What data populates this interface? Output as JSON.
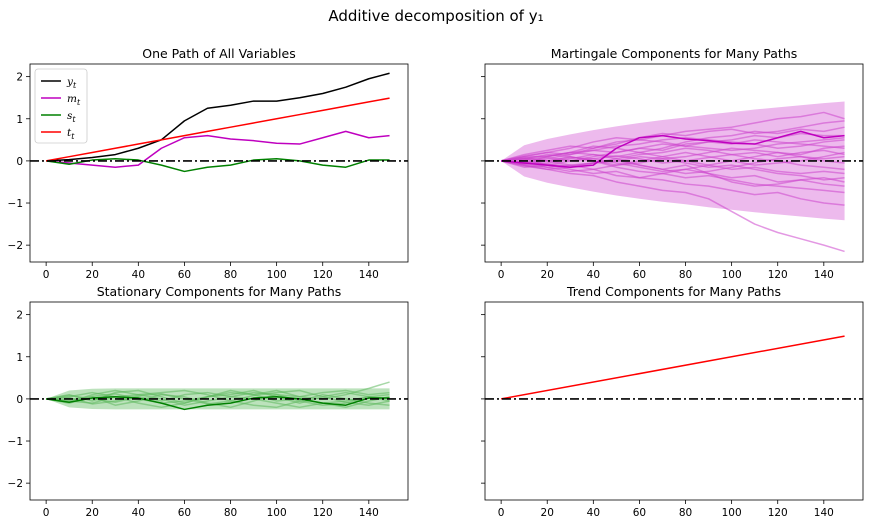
{
  "figure": {
    "title": "Additive decomposition of y₁"
  },
  "chart_data": [
    {
      "type": "line",
      "title": "One Path of All Variables",
      "xlabel": "",
      "ylabel": "",
      "xlim": [
        -7,
        157
      ],
      "ylim": [
        -2.4,
        2.3
      ],
      "xticks": [
        "0",
        "20",
        "40",
        "60",
        "80",
        "100",
        "120",
        "140"
      ],
      "yticks": [
        "−2",
        "−1",
        "0",
        "1",
        "2"
      ],
      "legend": {
        "position": "top-left",
        "entries": [
          "y_t",
          "m_t",
          "s_t",
          "t_t"
        ]
      },
      "x": [
        0,
        10,
        20,
        30,
        40,
        50,
        60,
        70,
        80,
        90,
        100,
        110,
        120,
        130,
        140,
        149
      ],
      "series": [
        {
          "name": "y_t",
          "color": "#000000",
          "values": [
            0,
            0.03,
            0.08,
            0.15,
            0.3,
            0.5,
            0.95,
            1.25,
            1.32,
            1.42,
            1.42,
            1.5,
            1.6,
            1.75,
            1.95,
            2.08
          ]
        },
        {
          "name": "m_t",
          "color": "#bf00bf",
          "values": [
            0,
            -0.05,
            -0.1,
            -0.15,
            -0.1,
            0.3,
            0.55,
            0.6,
            0.52,
            0.48,
            0.42,
            0.4,
            0.55,
            0.7,
            0.55,
            0.6
          ]
        },
        {
          "name": "s_t",
          "color": "#008000",
          "values": [
            0,
            -0.08,
            0.02,
            0.05,
            0.02,
            -0.1,
            -0.25,
            -0.15,
            -0.1,
            0.02,
            0.05,
            0,
            -0.1,
            -0.15,
            0.02,
            0.02
          ]
        },
        {
          "name": "t_t",
          "color": "#ff0000",
          "values": [
            0,
            0.1,
            0.2,
            0.3,
            0.4,
            0.5,
            0.6,
            0.7,
            0.8,
            0.9,
            1.0,
            1.1,
            1.2,
            1.3,
            1.4,
            1.49
          ]
        }
      ],
      "hline": {
        "y": 0,
        "style": "dashdot",
        "color": "#000000"
      }
    },
    {
      "type": "line",
      "title": "Martingale Components for Many Paths",
      "xlabel": "",
      "ylabel": "",
      "xlim": [
        -7,
        157
      ],
      "ylim": [
        -2.4,
        2.3
      ],
      "xticks": [
        "0",
        "20",
        "40",
        "60",
        "80",
        "100",
        "120",
        "140"
      ],
      "yticks": [],
      "band": {
        "color": "#e9a9e9",
        "upper": [
          0,
          0.37,
          0.52,
          0.63,
          0.73,
          0.82,
          0.9,
          0.97,
          1.03,
          1.1,
          1.16,
          1.22,
          1.27,
          1.32,
          1.37,
          1.41
        ],
        "lower": [
          0,
          -0.37,
          -0.52,
          -0.63,
          -0.73,
          -0.82,
          -0.9,
          -0.97,
          -1.03,
          -1.1,
          -1.16,
          -1.22,
          -1.27,
          -1.32,
          -1.37,
          -1.41
        ]
      },
      "x": [
        0,
        10,
        20,
        30,
        40,
        50,
        60,
        70,
        80,
        90,
        100,
        110,
        120,
        130,
        140,
        149
      ],
      "series": [
        {
          "values": [
            0,
            0.1,
            0.2,
            0.15,
            0.3,
            0.45,
            0.5,
            0.6,
            0.7,
            0.75,
            0.8,
            0.9,
            1.0,
            1.05,
            1.15,
            1.0
          ]
        },
        {
          "values": [
            0,
            -0.1,
            -0.2,
            -0.3,
            -0.35,
            -0.5,
            -0.6,
            -0.7,
            -0.75,
            -0.9,
            -1.2,
            -1.5,
            -1.7,
            -1.85,
            -2.0,
            -2.15
          ]
        },
        {
          "values": [
            0,
            0.05,
            -0.1,
            0.0,
            0.1,
            0.2,
            0.3,
            0.25,
            0.4,
            0.45,
            0.5,
            0.6,
            0.55,
            0.65,
            0.6,
            0.6
          ]
        },
        {
          "values": [
            0,
            -0.05,
            0.1,
            0.2,
            0.15,
            0.05,
            -0.1,
            -0.2,
            -0.1,
            -0.3,
            -0.4,
            -0.35,
            -0.5,
            -0.45,
            -0.55,
            -0.6
          ]
        },
        {
          "values": [
            0,
            0.15,
            0.25,
            0.35,
            0.3,
            0.4,
            0.55,
            0.65,
            0.6,
            0.7,
            0.75,
            0.65,
            0.7,
            0.8,
            0.9,
            0.95
          ]
        },
        {
          "values": [
            0,
            -0.15,
            -0.1,
            -0.2,
            -0.3,
            -0.25,
            -0.4,
            -0.45,
            -0.55,
            -0.6,
            -0.7,
            -0.8,
            -0.75,
            -0.9,
            -1.0,
            -1.05
          ]
        },
        {
          "values": [
            0,
            0.05,
            0.0,
            0.1,
            0.0,
            -0.1,
            0.0,
            0.1,
            0.2,
            0.1,
            0.0,
            0.1,
            0.2,
            0.15,
            0.3,
            0.35
          ]
        },
        {
          "values": [
            0,
            -0.08,
            -0.05,
            0.05,
            0.15,
            0.1,
            0.2,
            0.1,
            0.0,
            -0.1,
            -0.2,
            -0.15,
            -0.25,
            -0.3,
            -0.25,
            -0.3
          ]
        },
        {
          "values": [
            0,
            0.12,
            0.2,
            0.3,
            0.45,
            0.55,
            0.5,
            0.45,
            0.35,
            0.3,
            0.25,
            0.3,
            0.4,
            0.45,
            0.5,
            0.55
          ]
        },
        {
          "values": [
            0,
            -0.1,
            -0.15,
            -0.25,
            -0.2,
            -0.1,
            -0.05,
            0.05,
            0.1,
            0.2,
            0.3,
            0.25,
            0.2,
            0.1,
            0.05,
            0.1
          ]
        },
        {
          "values": [
            0,
            0.05,
            0.15,
            0.1,
            0.0,
            -0.15,
            -0.25,
            -0.3,
            -0.4,
            -0.35,
            -0.45,
            -0.55,
            -0.6,
            -0.65,
            -0.7,
            -0.75
          ]
        },
        {
          "values": [
            0,
            -0.05,
            0.05,
            0.15,
            0.25,
            0.2,
            0.3,
            0.4,
            0.35,
            0.45,
            0.4,
            0.5,
            0.45,
            0.4,
            0.35,
            0.3
          ]
        },
        {
          "values": [
            0,
            0.08,
            0.0,
            -0.1,
            -0.05,
            0.05,
            0.15,
            0.2,
            0.3,
            0.25,
            0.15,
            0.05,
            0.0,
            -0.1,
            -0.15,
            -0.2
          ]
        },
        {
          "values": [
            0,
            -0.12,
            -0.2,
            -0.15,
            -0.05,
            0.0,
            -0.1,
            -0.2,
            -0.3,
            -0.25,
            -0.15,
            -0.05,
            0.05,
            0.1,
            0.0,
            -0.05
          ]
        },
        {
          "values": [
            0,
            0.1,
            0.1,
            0.2,
            0.35,
            0.3,
            0.2,
            0.3,
            0.45,
            0.55,
            0.6,
            0.7,
            0.65,
            0.75,
            0.7,
            0.8
          ]
        },
        {
          "values": [
            0,
            -0.05,
            -0.15,
            -0.1,
            -0.2,
            -0.35,
            -0.4,
            -0.3,
            -0.2,
            -0.3,
            -0.5,
            -0.6,
            -0.55,
            -0.45,
            -0.4,
            -0.5
          ]
        },
        {
          "values": [
            0,
            0.03,
            0.08,
            0.0,
            0.05,
            0.12,
            0.05,
            -0.05,
            0.0,
            0.08,
            0.15,
            0.2,
            0.1,
            0.2,
            0.25,
            0.15
          ]
        },
        {
          "values": [
            0,
            -0.03,
            -0.08,
            -0.12,
            -0.05,
            0.0,
            0.1,
            0.05,
            -0.05,
            -0.15,
            -0.1,
            -0.2,
            -0.3,
            -0.35,
            -0.45,
            -0.4
          ]
        },
        {
          "values": [
            0,
            0.06,
            0.12,
            0.2,
            0.25,
            0.35,
            0.4,
            0.5,
            0.55,
            0.5,
            0.45,
            0.4,
            0.3,
            0.35,
            0.45,
            0.5
          ]
        },
        {
          "values": [
            0,
            -0.07,
            0.0,
            0.08,
            0.05,
            -0.05,
            -0.15,
            -0.25,
            -0.2,
            -0.1,
            0.0,
            -0.1,
            -0.05,
            0.0,
            0.1,
            0.2
          ]
        }
      ],
      "highlight_series": {
        "color": "#bf00bf",
        "values": [
          0,
          -0.05,
          -0.1,
          -0.15,
          -0.1,
          0.3,
          0.55,
          0.6,
          0.52,
          0.48,
          0.42,
          0.4,
          0.55,
          0.7,
          0.55,
          0.6
        ]
      },
      "series_color": "#cc44cc",
      "hline": {
        "y": 0,
        "style": "dashdot",
        "color": "#000000"
      }
    },
    {
      "type": "line",
      "title": "Stationary Components for Many Paths",
      "xlabel": "",
      "ylabel": "",
      "xlim": [
        -7,
        157
      ],
      "ylim": [
        -2.4,
        2.3
      ],
      "xticks": [
        "0",
        "20",
        "40",
        "60",
        "80",
        "100",
        "120",
        "140"
      ],
      "yticks": [
        "−2",
        "−1",
        "0",
        "1",
        "2"
      ],
      "band": {
        "color": "#8fce8f",
        "upper": [
          0,
          0.2,
          0.24,
          0.25,
          0.25,
          0.25,
          0.25,
          0.25,
          0.25,
          0.25,
          0.25,
          0.25,
          0.25,
          0.25,
          0.25,
          0.25
        ],
        "lower": [
          0,
          -0.2,
          -0.24,
          -0.25,
          -0.25,
          -0.25,
          -0.25,
          -0.25,
          -0.25,
          -0.25,
          -0.25,
          -0.25,
          -0.25,
          -0.25,
          -0.25,
          -0.25
        ]
      },
      "x": [
        0,
        10,
        20,
        30,
        40,
        50,
        60,
        70,
        80,
        90,
        100,
        110,
        120,
        130,
        140,
        149
      ],
      "series": [
        {
          "values": [
            0,
            0.1,
            -0.05,
            0.15,
            0.2,
            0.05,
            -0.1,
            0.05,
            0.15,
            0.1,
            0.2,
            0.05,
            0.0,
            0.1,
            0.25,
            0.4
          ]
        },
        {
          "values": [
            0,
            -0.1,
            0.05,
            -0.15,
            -0.05,
            0.1,
            0.05,
            -0.1,
            -0.2,
            -0.05,
            0.1,
            -0.05,
            -0.15,
            -0.1,
            0.05,
            -0.05
          ]
        },
        {
          "values": [
            0,
            0.05,
            0.15,
            0.05,
            -0.1,
            -0.2,
            -0.1,
            0.05,
            0.1,
            0.2,
            0.05,
            -0.1,
            0.05,
            0.15,
            0.05,
            0.1
          ]
        },
        {
          "values": [
            0,
            -0.05,
            -0.1,
            0.05,
            0.1,
            0.15,
            0.2,
            0.1,
            -0.05,
            -0.15,
            -0.2,
            -0.05,
            0.1,
            0.0,
            -0.1,
            -0.15
          ]
        },
        {
          "values": [
            0,
            0.08,
            0.0,
            -0.08,
            0.05,
            -0.05,
            0.1,
            0.15,
            0.05,
            0.0,
            -0.1,
            -0.2,
            -0.1,
            -0.05,
            0.05,
            0.0
          ]
        },
        {
          "values": [
            0,
            -0.08,
            0.1,
            0.2,
            0.1,
            0.0,
            -0.15,
            -0.05,
            0.05,
            0.15,
            0.1,
            0.05,
            0.15,
            0.2,
            0.1,
            0.15
          ]
        },
        {
          "values": [
            0,
            0.03,
            -0.12,
            -0.05,
            0.08,
            0.12,
            0.0,
            -0.12,
            -0.05,
            0.08,
            0.15,
            0.2,
            0.05,
            -0.08,
            -0.15,
            -0.05
          ]
        },
        {
          "values": [
            0,
            -0.03,
            0.06,
            0.12,
            0.0,
            -0.1,
            -0.05,
            0.05,
            0.2,
            0.1,
            -0.05,
            0.0,
            -0.1,
            -0.2,
            -0.05,
            0.05
          ]
        }
      ],
      "highlight_series": {
        "color": "#008000",
        "values": [
          0,
          -0.08,
          0.02,
          0.05,
          0.02,
          -0.1,
          -0.25,
          -0.15,
          -0.1,
          0.02,
          0.05,
          0,
          -0.1,
          -0.15,
          0.02,
          0.02
        ]
      },
      "series_color": "#5cb85c",
      "hline": {
        "y": 0,
        "style": "dashdot",
        "color": "#000000"
      }
    },
    {
      "type": "line",
      "title": "Trend Components for Many Paths",
      "xlabel": "",
      "ylabel": "",
      "xlim": [
        -7,
        157
      ],
      "ylim": [
        -2.4,
        2.3
      ],
      "xticks": [
        "0",
        "20",
        "40",
        "60",
        "80",
        "100",
        "120",
        "140"
      ],
      "yticks": [],
      "x": [
        0,
        149
      ],
      "series": [
        {
          "name": "t_t",
          "color": "#ff0000",
          "values": [
            0,
            1.49
          ]
        }
      ],
      "hline": {
        "y": 0,
        "style": "dashdot",
        "color": "#000000"
      }
    }
  ]
}
